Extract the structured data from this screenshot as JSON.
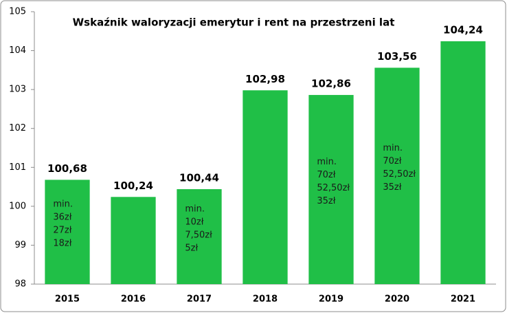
{
  "chart_data": {
    "type": "bar",
    "title": "Wskaźnik waloryzacji emerytur i rent na przestrzeni lat",
    "categories": [
      "2015",
      "2016",
      "2017",
      "2018",
      "2019",
      "2020",
      "2021"
    ],
    "values": [
      100.68,
      100.24,
      100.44,
      102.98,
      102.86,
      103.56,
      104.24
    ],
    "value_labels": [
      "100,68",
      "100,24",
      "100,44",
      "102,98",
      "102,86",
      "103,56",
      "104,24"
    ],
    "bar_notes": [
      [
        "min.",
        "36zł",
        "27zł",
        "18zł"
      ],
      null,
      [
        "min.",
        "10zł",
        "7,50zł",
        "5zł"
      ],
      null,
      [
        "min.",
        "70zł",
        "52,50zł",
        "35zł"
      ],
      [
        "min.",
        "70zł",
        "52,50zł",
        "35zł"
      ],
      null
    ],
    "color": "#20bf47",
    "ylim": [
      98,
      105
    ],
    "yticks": [
      98,
      99,
      100,
      101,
      102,
      103,
      104,
      105
    ],
    "grid": false
  }
}
